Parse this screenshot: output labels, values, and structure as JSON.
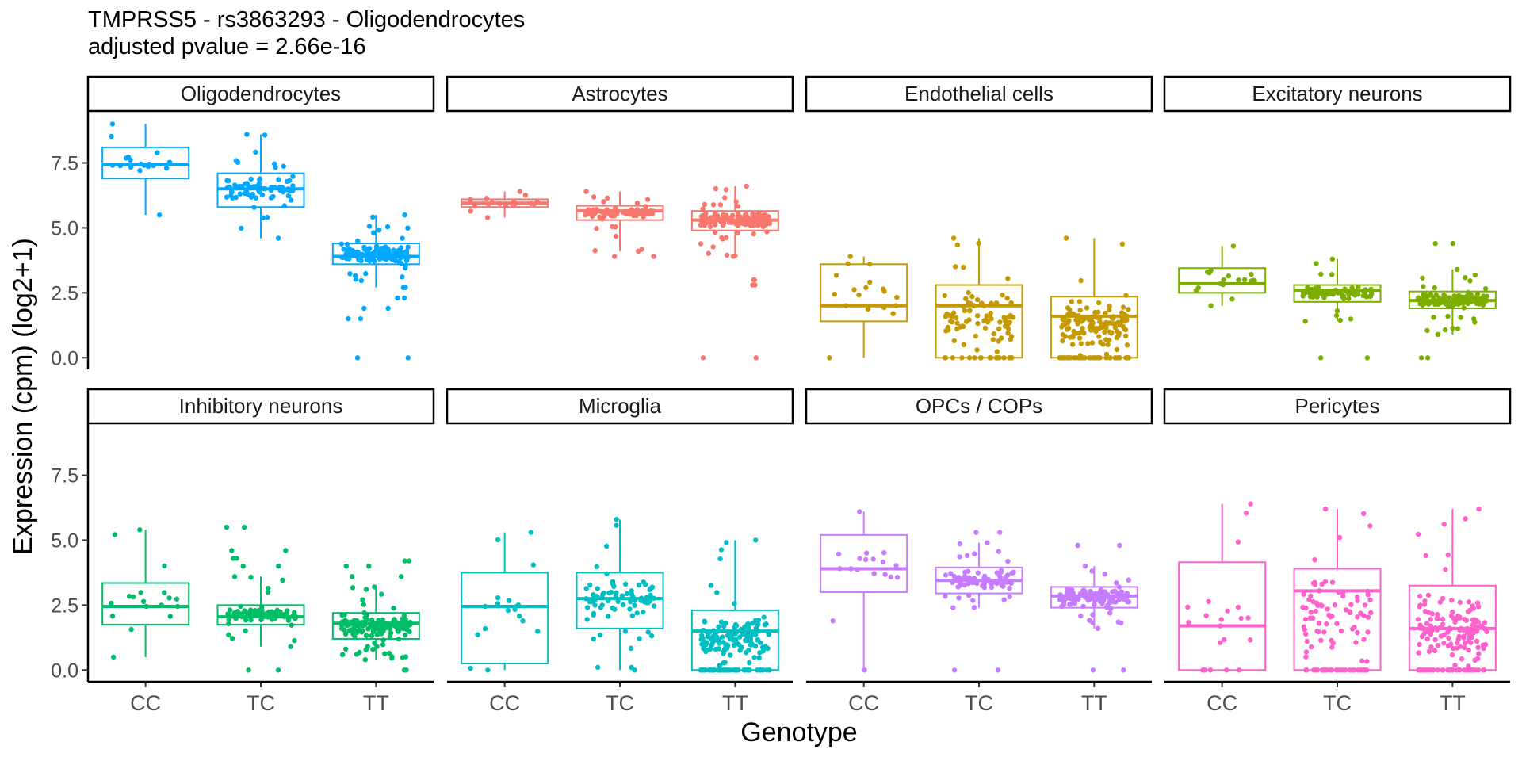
{
  "chart_data": {
    "type": "box",
    "title": "TMPRSS5 - rs3863293 - Oligodendrocytes",
    "subtitle": "adjusted pvalue = 2.66e-16",
    "xlabel": "Genotype",
    "ylabel": "Expression (cpm) (log2+1)",
    "categories": [
      "CC",
      "TC",
      "TT"
    ],
    "ylim": [
      -0.45,
      9.5
    ],
    "yticks": [
      "0.0",
      "2.5",
      "5.0",
      "7.5"
    ],
    "ytick_values": [
      0,
      2.5,
      5,
      7.5
    ],
    "grid": false,
    "legend": "none",
    "panels": [
      {
        "name": "Oligodendrocytes",
        "color": "#00A9FF",
        "boxes": [
          {
            "genotype": "CC",
            "min": 5.5,
            "q1": 6.9,
            "median": 7.45,
            "q3": 8.1,
            "max": 9.0,
            "n": 15,
            "outliers": []
          },
          {
            "genotype": "TC",
            "min": 4.6,
            "q1": 5.8,
            "median": 6.5,
            "q3": 7.1,
            "max": 8.6,
            "n": 80,
            "outliers": []
          },
          {
            "genotype": "TT",
            "min": 2.7,
            "q1": 3.6,
            "median": 3.9,
            "q3": 4.4,
            "max": 5.5,
            "n": 140,
            "outliers": [
              2.3,
              1.9,
              1.5,
              0.0
            ]
          }
        ]
      },
      {
        "name": "Astrocytes",
        "color": "#F8766D",
        "boxes": [
          {
            "genotype": "CC",
            "min": 5.4,
            "q1": 5.8,
            "median": 5.95,
            "q3": 6.1,
            "max": 6.4,
            "n": 15,
            "outliers": []
          },
          {
            "genotype": "TC",
            "min": 4.1,
            "q1": 5.3,
            "median": 5.65,
            "q3": 5.85,
            "max": 6.4,
            "n": 80,
            "outliers": [
              3.9
            ]
          },
          {
            "genotype": "TT",
            "min": 3.9,
            "q1": 4.9,
            "median": 5.3,
            "q3": 5.65,
            "max": 6.6,
            "n": 140,
            "outliers": [
              3.0,
              2.8,
              0.0
            ]
          }
        ]
      },
      {
        "name": "Endothelial cells",
        "color": "#C49A00",
        "boxes": [
          {
            "genotype": "CC",
            "min": 0.0,
            "q1": 1.4,
            "median": 2.0,
            "q3": 3.6,
            "max": 3.9,
            "n": 15,
            "outliers": []
          },
          {
            "genotype": "TC",
            "min": 0.0,
            "q1": 0.0,
            "median": 2.0,
            "q3": 2.8,
            "max": 4.6,
            "n": 80,
            "outliers": []
          },
          {
            "genotype": "TT",
            "min": 0.0,
            "q1": 0.0,
            "median": 1.6,
            "q3": 2.35,
            "max": 4.6,
            "n": 140,
            "outliers": []
          }
        ]
      },
      {
        "name": "Excitatory neurons",
        "color": "#7CAE00",
        "boxes": [
          {
            "genotype": "CC",
            "min": 2.0,
            "q1": 2.5,
            "median": 2.85,
            "q3": 3.45,
            "max": 4.3,
            "n": 15,
            "outliers": []
          },
          {
            "genotype": "TC",
            "min": 1.4,
            "q1": 2.15,
            "median": 2.6,
            "q3": 2.8,
            "max": 3.8,
            "n": 80,
            "outliers": [
              0.0
            ]
          },
          {
            "genotype": "TT",
            "min": 0.9,
            "q1": 1.9,
            "median": 2.2,
            "q3": 2.55,
            "max": 3.4,
            "n": 140,
            "outliers": [
              4.4,
              0.0
            ]
          }
        ]
      },
      {
        "name": "Inhibitory neurons",
        "color": "#00BE67",
        "boxes": [
          {
            "genotype": "CC",
            "min": 0.5,
            "q1": 1.75,
            "median": 2.45,
            "q3": 3.35,
            "max": 5.4,
            "n": 15,
            "outliers": []
          },
          {
            "genotype": "TC",
            "min": 0.9,
            "q1": 1.75,
            "median": 2.05,
            "q3": 2.5,
            "max": 3.6,
            "n": 80,
            "outliers": [
              5.5,
              4.6,
              4.3,
              4.0,
              0.0
            ]
          },
          {
            "genotype": "TT",
            "min": 0.4,
            "q1": 1.2,
            "median": 1.8,
            "q3": 2.2,
            "max": 3.2,
            "n": 140,
            "outliers": [
              4.2,
              4.0,
              3.6,
              0.0
            ]
          }
        ]
      },
      {
        "name": "Microglia",
        "color": "#00BFC4",
        "boxes": [
          {
            "genotype": "CC",
            "min": 0.0,
            "q1": 0.25,
            "median": 2.45,
            "q3": 3.75,
            "max": 5.3,
            "n": 15,
            "outliers": []
          },
          {
            "genotype": "TC",
            "min": 0.0,
            "q1": 1.6,
            "median": 2.75,
            "q3": 3.75,
            "max": 5.8,
            "n": 80,
            "outliers": []
          },
          {
            "genotype": "TT",
            "min": 0.0,
            "q1": 0.0,
            "median": 1.5,
            "q3": 2.3,
            "max": 5.0,
            "n": 140,
            "outliers": []
          }
        ]
      },
      {
        "name": "OPCs / COPs",
        "color": "#C77CFF",
        "boxes": [
          {
            "genotype": "CC",
            "min": 0.0,
            "q1": 3.0,
            "median": 3.9,
            "q3": 5.2,
            "max": 6.1,
            "n": 15,
            "outliers": []
          },
          {
            "genotype": "TC",
            "min": 2.4,
            "q1": 2.95,
            "median": 3.45,
            "q3": 3.95,
            "max": 4.9,
            "n": 80,
            "outliers": [
              5.3,
              0.0
            ]
          },
          {
            "genotype": "TT",
            "min": 1.6,
            "q1": 2.4,
            "median": 2.85,
            "q3": 3.2,
            "max": 4.0,
            "n": 140,
            "outliers": [
              4.8,
              0.0
            ]
          }
        ]
      },
      {
        "name": "Pericytes",
        "color": "#FF61CC",
        "boxes": [
          {
            "genotype": "CC",
            "min": 0.0,
            "q1": 0.0,
            "median": 1.7,
            "q3": 4.15,
            "max": 6.4,
            "n": 15,
            "outliers": []
          },
          {
            "genotype": "TC",
            "min": 0.0,
            "q1": 0.0,
            "median": 3.05,
            "q3": 3.9,
            "max": 6.2,
            "n": 80,
            "outliers": []
          },
          {
            "genotype": "TT",
            "min": 0.0,
            "q1": 0.0,
            "median": 1.6,
            "q3": 3.25,
            "max": 6.2,
            "n": 140,
            "outliers": []
          }
        ]
      }
    ]
  }
}
